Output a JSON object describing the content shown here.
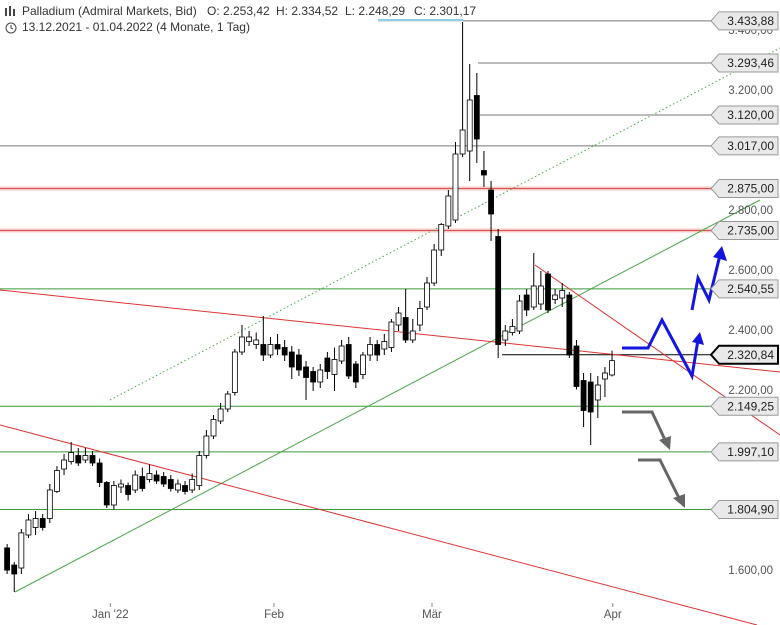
{
  "chart_data": {
    "type": "candlestick",
    "title": "Palladium (Admiral Markets, Bid)",
    "header": [
      "O: 2.253,42",
      "H: 2.334,52",
      "L: 2.248,29",
      "C: 2.301,17"
    ],
    "subtitle": "13.12.2021 - 01.04.2022  (4 Monate, 1 Tag)",
    "open": [
      1677,
      1620,
      1610,
      1720,
      1745,
      1775,
      1775,
      1865,
      1940,
      1965,
      1985,
      1970,
      1985,
      1960,
      1895,
      1820,
      1880,
      1885,
      1870,
      1915,
      1905,
      1920,
      1915,
      1905,
      1870,
      1885,
      1870,
      1885,
      1985,
      2050,
      2100,
      2140,
      2195,
      2330,
      2365,
      2355,
      2355,
      2320,
      2355,
      2345,
      2330,
      2320,
      2280,
      2265,
      2230,
      2310,
      2255,
      2300,
      2355,
      2290,
      2255,
      2320,
      2355,
      2340,
      2345,
      2420,
      2445,
      2370,
      2420,
      2480,
      2560,
      2670,
      2750,
      2770,
      2990,
      3000,
      3185,
      2935,
      2870,
      2715,
      2370,
      2395,
      2400,
      2520,
      2480,
      2490,
      2590,
      2505,
      2510,
      2520,
      2350,
      2235,
      2230,
      2170,
      2240,
      2253.42
    ],
    "high": [
      1690,
      1630,
      1740,
      1790,
      1800,
      1790,
      1890,
      1950,
      1990,
      2030,
      2010,
      2010,
      2000,
      1975,
      1900,
      1900,
      1905,
      1895,
      1935,
      1945,
      1955,
      1935,
      1930,
      1920,
      1905,
      1900,
      1925,
      2000,
      2070,
      2120,
      2160,
      2200,
      2340,
      2420,
      2400,
      2395,
      2450,
      2380,
      2390,
      2370,
      2350,
      2340,
      2300,
      2280,
      2290,
      2330,
      2345,
      2370,
      2380,
      2300,
      2330,
      2380,
      2370,
      2390,
      2440,
      2480,
      2540,
      2440,
      2500,
      2580,
      2690,
      2760,
      2870,
      3030,
      3430,
      3290,
      3260,
      3000,
      2900,
      2740,
      2420,
      2440,
      2520,
      2540,
      2660,
      2600,
      2600,
      2540,
      2560,
      2530,
      2370,
      2260,
      2260,
      2250,
      2280,
      2334.52
    ],
    "low": [
      1590,
      1530,
      1590,
      1710,
      1720,
      1735,
      1760,
      1860,
      1920,
      1955,
      1950,
      1960,
      1950,
      1880,
      1810,
      1805,
      1860,
      1835,
      1860,
      1865,
      1895,
      1890,
      1880,
      1865,
      1860,
      1855,
      1860,
      1870,
      1975,
      2040,
      2090,
      2130,
      2185,
      2320,
      2350,
      2340,
      2300,
      2310,
      2320,
      2300,
      2240,
      2250,
      2170,
      2200,
      2210,
      2240,
      2200,
      2290,
      2240,
      2210,
      2240,
      2300,
      2300,
      2320,
      2330,
      2400,
      2360,
      2360,
      2400,
      2470,
      2550,
      2650,
      2740,
      2760,
      2980,
      2900,
      2960,
      2880,
      2700,
      2310,
      2350,
      2385,
      2390,
      2450,
      2470,
      2470,
      2460,
      2490,
      2480,
      2310,
      2205,
      2080,
      2020,
      2110,
      2180,
      2248.29
    ],
    "close": [
      1603,
      1590,
      1727,
      1770,
      1775,
      1745,
      1870,
      1935,
      1970,
      1995,
      1960,
      1985,
      1960,
      1895,
      1820,
      1885,
      1890,
      1855,
      1920,
      1875,
      1925,
      1900,
      1890,
      1875,
      1890,
      1865,
      1905,
      1985,
      2050,
      2105,
      2140,
      2190,
      2330,
      2380,
      2380,
      2370,
      2320,
      2355,
      2340,
      2320,
      2280,
      2270,
      2245,
      2230,
      2270,
      2265,
      2305,
      2350,
      2250,
      2230,
      2320,
      2355,
      2320,
      2365,
      2430,
      2460,
      2370,
      2400,
      2475,
      2560,
      2670,
      2755,
      2850,
      2990,
      3070,
      3170,
      3040,
      2920,
      2790,
      2355,
      2400,
      2415,
      2500,
      2470,
      2550,
      2550,
      2470,
      2520,
      2535,
      2320,
      2215,
      2135,
      2130,
      2220,
      2260,
      2301.17
    ],
    "up_color": "#ffffff",
    "down_color": "#000000",
    "xlim": [
      -1,
      108.6
    ],
    "xticks": [
      {
        "value": 14.5,
        "label": "Jan '22"
      },
      {
        "value": 37.5,
        "label": "Feb"
      },
      {
        "value": 59.7,
        "label": "Mär"
      },
      {
        "value": 85.1,
        "label": "Apr"
      }
    ],
    "ylim": [
      1500,
      3500
    ],
    "yticks": [
      {
        "value": 3400,
        "label": "3.400,00"
      },
      {
        "value": 3200,
        "label": "3.200,00"
      },
      {
        "value": 2800,
        "label": "2.800,00"
      },
      {
        "value": 2600,
        "label": "2.600,00"
      },
      {
        "value": 2400,
        "label": "2.400,00"
      },
      {
        "value": 2200,
        "label": "2.200,00"
      },
      {
        "value": 1600,
        "label": "1.600,00"
      }
    ],
    "levels": {
      "values": [
        3433.88,
        3293.46,
        3120,
        3017,
        2875,
        2735,
        2540.55,
        2320.84,
        2149.25,
        1997.1,
        1804.9
      ],
      "value_labels": [
        "3.433,88",
        "3.293,46",
        "3.120,00",
        "3.017,00",
        "2.875,00",
        "2.735,00",
        "2.540,55",
        "2.320,84",
        "2.149,25",
        "1.997,10",
        "1.804,90"
      ],
      "colors": [
        "#777777",
        "#777777",
        "#777777",
        "#777777",
        "#d9534f",
        "#d9534f",
        "#3a9a3a",
        "#000000",
        "#3a9a3a",
        "#3a9a3a",
        "#3a9a3a"
      ]
    }
  }
}
